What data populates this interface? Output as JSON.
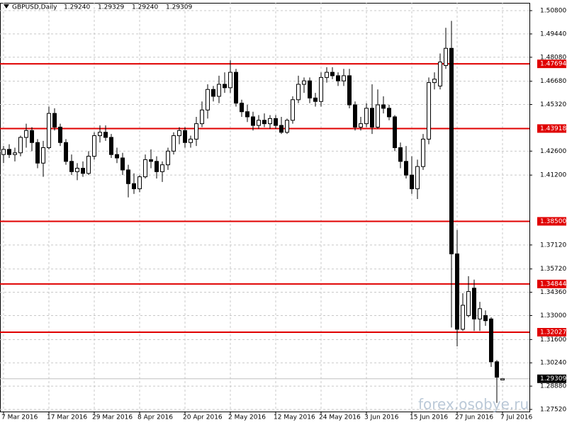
{
  "chart_data": {
    "type": "candlestick",
    "title": "GBPUSD,Daily",
    "quote": [
      "1.29240",
      "1.29329",
      "1.29240",
      "1.29309"
    ],
    "watermark": "forex.osobye.ru",
    "categories": [
      "7 Mar 2016",
      null,
      null,
      null,
      null,
      null,
      null,
      null,
      "17 Mar 2016",
      null,
      null,
      null,
      null,
      null,
      null,
      null,
      "29 Mar 2016",
      null,
      null,
      null,
      null,
      null,
      null,
      null,
      "8 Apr 2016",
      null,
      null,
      null,
      null,
      null,
      null,
      null,
      "20 Apr 2016",
      null,
      null,
      null,
      null,
      null,
      null,
      null,
      "2 May 2016",
      null,
      null,
      null,
      null,
      null,
      null,
      null,
      "12 May 2016",
      null,
      null,
      null,
      null,
      null,
      null,
      null,
      "24 May 2016",
      null,
      null,
      null,
      null,
      null,
      null,
      null,
      "3 Jun 2016",
      null,
      null,
      null,
      null,
      null,
      null,
      null,
      "15 Jun 2016",
      null,
      null,
      null,
      null,
      null,
      null,
      null,
      "27 Jun 2016",
      null,
      null,
      null,
      null,
      null,
      null,
      null,
      "7 Jul 2016"
    ],
    "open": [
      1.424,
      1.427,
      1.424,
      1.425,
      1.434,
      1.438,
      1.431,
      1.419,
      1.428,
      1.448,
      1.44,
      1.431,
      1.42,
      1.414,
      1.416,
      1.413,
      1.423,
      1.435,
      1.437,
      1.434,
      1.424,
      1.422,
      1.415,
      1.407,
      1.404,
      1.411,
      1.421,
      1.42,
      1.414,
      1.418,
      1.426,
      1.435,
      1.438,
      1.431,
      1.433,
      1.442,
      1.45,
      1.462,
      1.458,
      1.465,
      1.463,
      1.472,
      1.454,
      1.449,
      1.446,
      1.441,
      1.444,
      1.442,
      1.445,
      1.441,
      1.437,
      1.444,
      1.456,
      1.465,
      1.467,
      1.457,
      1.455,
      1.469,
      1.472,
      1.47,
      1.467,
      1.47,
      1.453,
      1.44,
      1.442,
      1.451,
      1.44,
      1.453,
      1.451,
      1.446,
      1.428,
      1.42,
      1.412,
      1.404,
      1.417,
      1.433,
      1.466,
      1.464,
      1.476,
      1.486,
      1.366,
      1.322,
      1.33,
      1.346,
      1.328,
      1.33,
      1.328,
      1.303,
      1.2924
    ],
    "high": [
      1.429,
      1.43,
      1.428,
      1.435,
      1.442,
      1.44,
      1.433,
      1.432,
      1.452,
      1.451,
      1.442,
      1.433,
      1.424,
      1.419,
      1.42,
      1.426,
      1.437,
      1.441,
      1.441,
      1.436,
      1.428,
      1.425,
      1.418,
      1.413,
      1.412,
      1.424,
      1.427,
      1.423,
      1.42,
      1.428,
      1.437,
      1.44,
      1.44,
      1.435,
      1.446,
      1.455,
      1.465,
      1.464,
      1.47,
      1.472,
      1.479,
      1.474,
      1.456,
      1.453,
      1.449,
      1.447,
      1.448,
      1.447,
      1.447,
      1.446,
      1.445,
      1.458,
      1.47,
      1.469,
      1.469,
      1.46,
      1.472,
      1.475,
      1.475,
      1.472,
      1.474,
      1.474,
      1.455,
      1.446,
      1.454,
      1.465,
      1.462,
      1.458,
      1.453,
      1.447,
      1.431,
      1.429,
      1.423,
      1.421,
      1.436,
      1.469,
      1.472,
      1.483,
      1.498,
      1.502,
      1.38,
      1.343,
      1.353,
      1.351,
      1.338,
      1.333,
      1.329,
      1.304,
      1.29329
    ],
    "low": [
      1.419,
      1.422,
      1.42,
      1.423,
      1.428,
      1.426,
      1.416,
      1.411,
      1.427,
      1.438,
      1.429,
      1.418,
      1.412,
      1.409,
      1.411,
      1.412,
      1.421,
      1.431,
      1.432,
      1.422,
      1.419,
      1.412,
      1.399,
      1.401,
      1.402,
      1.41,
      1.416,
      1.41,
      1.408,
      1.415,
      1.424,
      1.43,
      1.428,
      1.428,
      1.429,
      1.44,
      1.445,
      1.455,
      1.454,
      1.46,
      1.46,
      1.452,
      1.446,
      1.443,
      1.438,
      1.439,
      1.44,
      1.439,
      1.439,
      1.436,
      1.436,
      1.442,
      1.454,
      1.46,
      1.454,
      1.452,
      1.452,
      1.466,
      1.468,
      1.464,
      1.464,
      1.451,
      1.438,
      1.438,
      1.44,
      1.436,
      1.439,
      1.448,
      1.444,
      1.426,
      1.416,
      1.41,
      1.401,
      1.398,
      1.415,
      1.43,
      1.462,
      1.462,
      1.474,
      1.323,
      1.312,
      1.321,
      1.329,
      1.321,
      1.321,
      1.324,
      1.3,
      1.279,
      1.2924
    ],
    "close": [
      1.427,
      1.424,
      1.425,
      1.434,
      1.438,
      1.431,
      1.419,
      1.428,
      1.448,
      1.44,
      1.431,
      1.42,
      1.414,
      1.416,
      1.413,
      1.423,
      1.435,
      1.437,
      1.434,
      1.424,
      1.422,
      1.415,
      1.407,
      1.404,
      1.411,
      1.421,
      1.42,
      1.414,
      1.418,
      1.426,
      1.435,
      1.438,
      1.431,
      1.433,
      1.442,
      1.45,
      1.462,
      1.458,
      1.465,
      1.463,
      1.472,
      1.454,
      1.449,
      1.446,
      1.441,
      1.444,
      1.442,
      1.445,
      1.441,
      1.437,
      1.444,
      1.456,
      1.465,
      1.467,
      1.457,
      1.455,
      1.469,
      1.472,
      1.47,
      1.467,
      1.47,
      1.453,
      1.44,
      1.442,
      1.451,
      1.44,
      1.453,
      1.451,
      1.446,
      1.428,
      1.42,
      1.412,
      1.404,
      1.417,
      1.433,
      1.466,
      1.468,
      1.478,
      1.486,
      1.366,
      1.322,
      1.336,
      1.344,
      1.328,
      1.334,
      1.327,
      1.303,
      1.294,
      1.29309
    ],
    "up_color": "#ffffff",
    "down_color": "#000000",
    "ylim": [
      1.27396,
      1.51256
    ],
    "yticks": [
      {
        "value": 1.508,
        "label": "1.50800"
      },
      {
        "value": 1.4944,
        "label": "1.49440"
      },
      {
        "value": 1.4808,
        "label": "1.48080"
      },
      {
        "value": 1.4668,
        "label": "1.46680"
      },
      {
        "value": 1.4532,
        "label": "1.45320"
      },
      {
        "value": 1.426,
        "label": "1.42600"
      },
      {
        "value": 1.412,
        "label": "1.41200"
      },
      {
        "value": 1.3712,
        "label": "1.37120"
      },
      {
        "value": 1.3572,
        "label": "1.35720"
      },
      {
        "value": 1.3436,
        "label": "1.34360"
      },
      {
        "value": 1.33,
        "label": "1.33000"
      },
      {
        "value": 1.316,
        "label": "1.31600"
      },
      {
        "value": 1.3024,
        "label": "1.30240"
      },
      {
        "value": 1.2888,
        "label": "1.28880"
      },
      {
        "value": 1.2752,
        "label": "1.27520"
      }
    ],
    "levels": [
      1.47694,
      1.43918,
      {
        "value": 1.385,
        "label": "1.38500"
      },
      1.34844,
      1.32027
    ],
    "level_color": "#e00000",
    "current_price": 1.29309,
    "grid": true
  }
}
